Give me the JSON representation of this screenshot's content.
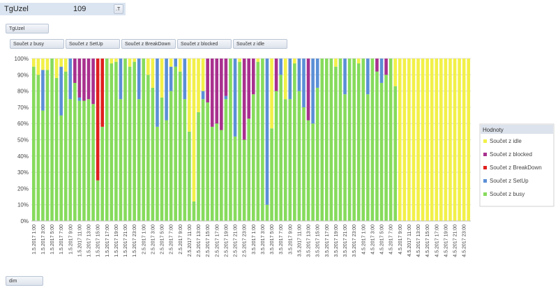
{
  "ui": {
    "filter_field": "TgUzel",
    "filter_value": "109",
    "filter_icon": ".T",
    "page_button": "TgUzel",
    "value_buttons": [
      "Součet z busy",
      "Součet z SetUp",
      "Součet z BreakDown",
      "Součet z blocked",
      "Součet z idle"
    ],
    "axis_button": "dim"
  },
  "chart_data": {
    "type": "stacked_bar",
    "legend_title": "Hodnoty",
    "legend": "right",
    "categories": [
      "1.5.2017 1:00",
      null,
      "1.5.2017 3:00",
      null,
      "1.5.2017 5:00",
      null,
      "1.5.2017 7:00",
      null,
      "1.5.2017 9:00",
      null,
      "1.5.2017 11:00",
      null,
      "1.5.2017 13:00",
      null,
      "1.5.2017 15:00",
      null,
      "1.5.2017 17:00",
      null,
      "1.5.2017 19:00",
      null,
      "1.5.2017 21:00",
      null,
      "1.5.2017 23:00",
      null,
      "2.5.2017 1:00",
      null,
      "2.5.2017 3:00",
      null,
      "2.5.2017 5:00",
      null,
      "2.5.2017 7:00",
      null,
      "2.5.2017 9:00",
      null,
      "2.5.2017 11:00",
      null,
      "2.5.2017 13:00",
      null,
      "2.5.2017 15:00",
      null,
      "2.5.2017 17:00",
      null,
      "2.5.2017 19:00",
      null,
      "2.5.2017 21:00",
      null,
      "2.5.2017 23:00",
      null,
      "3.5.2017 1:00",
      null,
      "3.5.2017 3:00",
      null,
      "3.5.2017 5:00",
      null,
      "3.5.2017 7:00",
      null,
      "3.5.2017 9:00",
      null,
      "3.5.2017 11:00",
      null,
      "3.5.2017 13:00",
      null,
      "3.5.2017 15:00",
      null,
      "3.5.2017 17:00",
      null,
      "3.5.2017 19:00",
      null,
      "3.5.2017 21:00",
      null,
      "3.5.2017 23:00",
      null,
      "4.5.2017 1:00",
      null,
      "4.5.2017 3:00",
      null,
      "4.5.2017 5:00",
      null,
      "4.5.2017 7:00",
      null,
      "4.5.2017 9:00",
      null,
      "4.5.2017 11:00",
      null,
      "4.5.2017 13:00",
      null,
      "4.5.2017 15:00",
      null,
      "4.5.2017 17:00",
      null,
      "4.5.2017 19:00",
      null,
      "4.5.2017 21:00",
      null,
      "4.5.2017 23:00",
      null
    ],
    "series": [
      {
        "name": "Součet z busy",
        "color": "#86db5c",
        "values": [
          95,
          90,
          68,
          93,
          100,
          88,
          65,
          92,
          75,
          85,
          74,
          74,
          75,
          72,
          25,
          58,
          100,
          97,
          98,
          75,
          100,
          95,
          98,
          75,
          100,
          90,
          82,
          58,
          76,
          62,
          80,
          95,
          92,
          75,
          55,
          12,
          67,
          75,
          73,
          58,
          60,
          56,
          75,
          100,
          52,
          98,
          50,
          63,
          78,
          98,
          100,
          10,
          57,
          80,
          90,
          75,
          75,
          97,
          80,
          70,
          62,
          60,
          82,
          100,
          100,
          100,
          95,
          100,
          78,
          100,
          100,
          97,
          100,
          78,
          100,
          92,
          85,
          90,
          100,
          83,
          0,
          0,
          0,
          0,
          0,
          0,
          0,
          0,
          0,
          0,
          0,
          0,
          0,
          0,
          0,
          0
        ]
      },
      {
        "name": "Součet z SetUp",
        "color": "#5b8fd6",
        "values": [
          0,
          0,
          25,
          0,
          0,
          0,
          30,
          0,
          25,
          0,
          2,
          0,
          0,
          0,
          0,
          0,
          0,
          0,
          0,
          25,
          0,
          0,
          0,
          25,
          0,
          0,
          0,
          42,
          0,
          38,
          15,
          5,
          0,
          25,
          0,
          0,
          0,
          5,
          0,
          0,
          0,
          0,
          2,
          0,
          48,
          0,
          0,
          0,
          0,
          0,
          0,
          90,
          0,
          0,
          10,
          0,
          25,
          0,
          20,
          30,
          0,
          40,
          18,
          0,
          0,
          0,
          0,
          0,
          22,
          0,
          0,
          0,
          0,
          22,
          0,
          0,
          15,
          0,
          0,
          0,
          0,
          0,
          0,
          0,
          0,
          0,
          0,
          0,
          0,
          0,
          0,
          0,
          0,
          0,
          0,
          0
        ]
      },
      {
        "name": "Součet z BreakDown",
        "color": "#e0201e",
        "values": [
          0,
          0,
          0,
          0,
          0,
          0,
          0,
          0,
          0,
          0,
          0,
          0,
          0,
          0,
          75,
          42,
          0,
          0,
          0,
          0,
          0,
          0,
          0,
          0,
          0,
          0,
          0,
          0,
          0,
          0,
          0,
          0,
          0,
          0,
          0,
          0,
          0,
          0,
          0,
          0,
          0,
          0,
          0,
          0,
          0,
          0,
          0,
          0,
          0,
          0,
          0,
          0,
          0,
          0,
          0,
          0,
          0,
          0,
          0,
          0,
          0,
          0,
          0,
          0,
          0,
          0,
          0,
          0,
          0,
          0,
          0,
          0,
          0,
          0,
          0,
          0,
          0,
          0,
          0,
          0,
          0,
          0,
          0,
          0,
          0,
          0,
          0,
          0,
          0,
          0,
          0,
          0,
          0,
          0,
          0,
          0
        ]
      },
      {
        "name": "Součet z blocked",
        "color": "#a8308e",
        "values": [
          0,
          0,
          0,
          0,
          0,
          0,
          0,
          0,
          0,
          15,
          24,
          26,
          25,
          28,
          0,
          0,
          0,
          0,
          0,
          0,
          0,
          0,
          0,
          0,
          0,
          0,
          0,
          0,
          0,
          0,
          0,
          0,
          0,
          0,
          0,
          0,
          0,
          0,
          27,
          42,
          40,
          44,
          23,
          0,
          0,
          0,
          50,
          37,
          22,
          0,
          0,
          0,
          0,
          20,
          0,
          0,
          0,
          0,
          0,
          0,
          38,
          0,
          0,
          0,
          0,
          0,
          0,
          0,
          0,
          0,
          0,
          0,
          0,
          0,
          0,
          8,
          0,
          10,
          0,
          0,
          0,
          0,
          0,
          0,
          0,
          0,
          0,
          0,
          0,
          0,
          0,
          0,
          0,
          0,
          0,
          0
        ]
      },
      {
        "name": "Součet z idle",
        "color": "#f2f048",
        "values": [
          5,
          10,
          7,
          7,
          0,
          12,
          5,
          8,
          0,
          0,
          0,
          0,
          0,
          0,
          0,
          0,
          0,
          3,
          2,
          0,
          0,
          5,
          2,
          0,
          0,
          10,
          18,
          0,
          24,
          0,
          5,
          0,
          8,
          0,
          45,
          88,
          33,
          20,
          0,
          0,
          0,
          0,
          0,
          0,
          0,
          2,
          0,
          0,
          0,
          2,
          0,
          0,
          43,
          0,
          0,
          25,
          0,
          3,
          0,
          0,
          0,
          0,
          0,
          0,
          0,
          0,
          5,
          0,
          0,
          0,
          0,
          3,
          0,
          0,
          0,
          0,
          0,
          0,
          0,
          17,
          100,
          100,
          100,
          100,
          100,
          100,
          100,
          100,
          100,
          100,
          100,
          100,
          100,
          100,
          100,
          100
        ]
      }
    ],
    "ylim": [
      0,
      100
    ],
    "yticks": [
      {
        "value": 0,
        "label": "0%"
      },
      {
        "value": 10,
        "label": "10%"
      },
      {
        "value": 20,
        "label": "20%"
      },
      {
        "value": 30,
        "label": "30%"
      },
      {
        "value": 40,
        "label": "40%"
      },
      {
        "value": 50,
        "label": "50%"
      },
      {
        "value": 60,
        "label": "60%"
      },
      {
        "value": 70,
        "label": "70%"
      },
      {
        "value": 80,
        "label": "80%"
      },
      {
        "value": 90,
        "label": "90%"
      },
      {
        "value": 100,
        "label": "100%"
      }
    ],
    "grid": true
  }
}
